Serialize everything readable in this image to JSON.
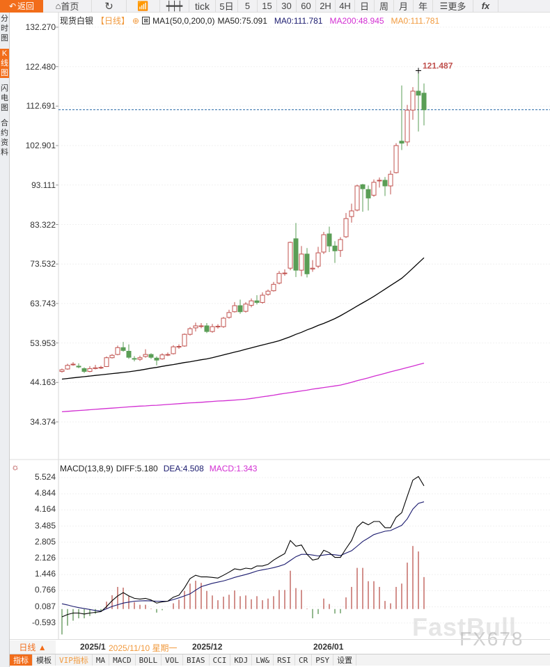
{
  "toolbar": {
    "back": "返回",
    "home": "首页",
    "items": [
      "tick",
      "5日",
      "5",
      "15",
      "30",
      "60",
      "2H",
      "4H",
      "日",
      "周",
      "月",
      "年"
    ],
    "more": "更多",
    "fx": "fx"
  },
  "left_tabs": [
    "分时图",
    "K线图",
    "闪电图",
    "合约资料"
  ],
  "header": {
    "symbol": "现货白银",
    "period": "【日线】",
    "ma_params": "MA1(50,0,200,0)",
    "ma50": "MA50:75.091",
    "ma0_a": "MA0:111.781",
    "ma200": "MA200:48.945",
    "ma0_b": "MA0:111.781"
  },
  "colors": {
    "up": "#c0504d",
    "down": "#5a9e56",
    "ma50": "#000000",
    "ma200": "#d22ed2",
    "accent": "#f26d1a",
    "dea": "#1a1a6e",
    "last_price_line": "#2a6aa8"
  },
  "price_axis": [
    "132.270",
    "122.480",
    "112.691",
    "102.901",
    "93.111",
    "83.322",
    "73.532",
    "63.743",
    "53.953",
    "44.163",
    "34.374"
  ],
  "macd_header": {
    "title": "MACD(13,8,9)",
    "diff": "DIFF:5.180",
    "dea": "DEA:4.508",
    "macd": "MACD:1.343"
  },
  "macd_axis": [
    "5.524",
    "4.844",
    "4.164",
    "3.485",
    "2.805",
    "2.126",
    "1.446",
    "0.766",
    "0.087",
    "-0.593"
  ],
  "date_axis": {
    "period": "日线 ▲",
    "labels": [
      "2025/1",
      "2025/12",
      "2026/01"
    ],
    "cursor": "2025/11/10 星期一"
  },
  "bottom_tabs": [
    "指标",
    "模板",
    "VIP指标",
    "MA",
    "MACD",
    "BOLL",
    "VOL",
    "BIAS",
    "CCI",
    "KDJ",
    "LW&",
    "RSI",
    "CR",
    "PSY",
    "设置"
  ],
  "watermark": [
    "FastBull",
    "FX678"
  ],
  "chart_data": [
    {
      "type": "candlestick",
      "ylim": [
        34.374,
        132.27
      ],
      "high_label": "121.487",
      "last_price": 111.781,
      "ohlc_fields": [
        "open",
        "close",
        "high",
        "low"
      ],
      "candles": [
        [
          46.9,
          47.3,
          47.6,
          46.6
        ],
        [
          47.5,
          48.4,
          48.8,
          47.3
        ],
        [
          48.6,
          48.7,
          49.2,
          48.3
        ],
        [
          48.2,
          48.0,
          48.9,
          47.7
        ],
        [
          47.6,
          46.9,
          47.9,
          46.5
        ],
        [
          46.9,
          47.6,
          48.2,
          46.7
        ],
        [
          47.6,
          47.8,
          48.5,
          47.4
        ],
        [
          47.8,
          47.9,
          48.3,
          47.5
        ],
        [
          48.1,
          50.3,
          50.6,
          48.0
        ],
        [
          50.3,
          50.9,
          51.2,
          50.1
        ],
        [
          51.1,
          52.8,
          53.3,
          50.9
        ],
        [
          52.8,
          52.1,
          54.2,
          51.8
        ],
        [
          51.9,
          50.4,
          53.6,
          50.0
        ],
        [
          50.1,
          50.0,
          50.7,
          49.4
        ],
        [
          49.9,
          50.3,
          50.8,
          49.5
        ],
        [
          50.6,
          51.1,
          52.4,
          50.3
        ],
        [
          51.1,
          50.4,
          51.4,
          50.0
        ],
        [
          50.2,
          49.7,
          50.6,
          48.4
        ],
        [
          50.0,
          51.0,
          51.4,
          49.8
        ],
        [
          51.0,
          51.1,
          51.6,
          50.7
        ],
        [
          51.3,
          53.0,
          53.4,
          51.1
        ],
        [
          53.0,
          53.1,
          53.6,
          52.5
        ],
        [
          53.2,
          56.1,
          56.3,
          53.0
        ],
        [
          56.1,
          57.5,
          57.9,
          55.8
        ],
        [
          57.7,
          58.2,
          59.0,
          56.8
        ],
        [
          58.2,
          58.2,
          58.9,
          57.6
        ],
        [
          58.2,
          56.8,
          58.9,
          56.4
        ],
        [
          56.8,
          58.0,
          58.7,
          56.5
        ],
        [
          58.0,
          58.1,
          58.6,
          57.5
        ],
        [
          58.0,
          60.1,
          60.4,
          57.7
        ],
        [
          60.3,
          61.5,
          62.2,
          60.0
        ],
        [
          61.7,
          63.2,
          64.1,
          61.5
        ],
        [
          63.2,
          61.7,
          64.7,
          61.2
        ],
        [
          61.8,
          63.6,
          64.1,
          61.5
        ],
        [
          63.3,
          64.4,
          65.0,
          62.8
        ],
        [
          64.4,
          64.0,
          65.8,
          63.5
        ],
        [
          64.0,
          65.8,
          66.5,
          63.7
        ],
        [
          66.0,
          66.8,
          67.2,
          65.7
        ],
        [
          66.9,
          68.5,
          69.1,
          66.7
        ],
        [
          68.8,
          71.2,
          71.8,
          68.5
        ],
        [
          71.3,
          71.3,
          72.2,
          70.6
        ],
        [
          72.5,
          78.9,
          79.1,
          72.0
        ],
        [
          79.8,
          72.0,
          83.7,
          70.3
        ],
        [
          72.0,
          76.0,
          78.0,
          70.5
        ],
        [
          76.0,
          71.1,
          77.5,
          70.2
        ],
        [
          72.3,
          72.5,
          74.5,
          71.6
        ],
        [
          73.0,
          76.3,
          77.8,
          72.5
        ],
        [
          76.5,
          80.8,
          81.5,
          76.0
        ],
        [
          81.0,
          78.0,
          82.8,
          76.5
        ],
        [
          78.0,
          76.8,
          79.2,
          73.8
        ],
        [
          76.9,
          79.6,
          80.2,
          75.3
        ],
        [
          80.3,
          84.8,
          86.2,
          80.0
        ],
        [
          85.3,
          86.7,
          88.5,
          83.8
        ],
        [
          86.9,
          92.9,
          93.2,
          86.6
        ],
        [
          93.2,
          92.2,
          93.4,
          86.5
        ],
        [
          92.0,
          89.9,
          93.0,
          86.8
        ],
        [
          90.6,
          93.8,
          94.5,
          90.2
        ],
        [
          94.3,
          94.3,
          95.0,
          92.5
        ],
        [
          94.3,
          92.9,
          95.1,
          90.4
        ],
        [
          92.9,
          95.8,
          96.7,
          90.8
        ],
        [
          96.2,
          102.9,
          103.5,
          96.0
        ],
        [
          104.0,
          103.5,
          117.8,
          101.8
        ],
        [
          103.8,
          111.7,
          113.0,
          102.8
        ],
        [
          111.7,
          116.4,
          117.4,
          109.3
        ],
        [
          116.4,
          115.4,
          121.487,
          106.4
        ],
        [
          115.9,
          111.781,
          118.3,
          107.9
        ]
      ],
      "ma50": [
        45.0,
        45.15,
        45.3,
        45.45,
        45.6,
        45.75,
        45.9,
        46.05,
        46.2,
        46.35,
        46.5,
        46.65,
        46.8,
        47.0,
        47.2,
        47.45,
        47.7,
        47.9,
        48.15,
        48.4,
        48.6,
        48.85,
        49.1,
        49.3,
        49.55,
        49.8,
        50.0,
        50.3,
        50.65,
        51.0,
        51.35,
        51.7,
        52.0,
        52.4,
        52.75,
        53.1,
        53.45,
        53.8,
        54.15,
        54.5,
        55.0,
        55.5,
        56.1,
        56.6,
        57.2,
        57.7,
        58.3,
        58.8,
        59.4,
        60.0,
        60.7,
        61.5,
        62.3,
        63.1,
        63.9,
        64.7,
        65.5,
        66.4,
        67.3,
        68.2,
        69.1,
        70.0,
        71.2,
        72.5,
        73.8,
        75.091
      ],
      "ma200": [
        36.9,
        37.0,
        37.1,
        37.2,
        37.3,
        37.4,
        37.5,
        37.6,
        37.7,
        37.8,
        37.9,
        38.0,
        38.1,
        38.2,
        38.3,
        38.35,
        38.45,
        38.5,
        38.6,
        38.7,
        38.8,
        38.9,
        39.0,
        39.1,
        39.15,
        39.25,
        39.35,
        39.45,
        39.55,
        39.6,
        39.7,
        39.8,
        39.9,
        40.0,
        40.2,
        40.4,
        40.6,
        40.8,
        41.0,
        41.25,
        41.45,
        41.65,
        41.85,
        42.05,
        42.25,
        42.5,
        42.7,
        42.9,
        43.1,
        43.3,
        43.5,
        43.85,
        44.2,
        44.6,
        44.95,
        45.3,
        45.7,
        46.05,
        46.4,
        46.8,
        47.15,
        47.5,
        47.85,
        48.2,
        48.6,
        48.945
      ]
    },
    {
      "type": "macd",
      "ylim": [
        -0.593,
        5.524
      ],
      "diff": [
        -0.33,
        -0.23,
        -0.17,
        -0.17,
        -0.21,
        -0.17,
        -0.14,
        -0.11,
        0.1,
        0.35,
        0.55,
        0.69,
        0.55,
        0.45,
        0.42,
        0.45,
        0.38,
        0.25,
        0.3,
        0.33,
        0.5,
        0.58,
        0.89,
        1.28,
        1.42,
        1.35,
        1.35,
        1.33,
        1.3,
        1.42,
        1.55,
        1.69,
        1.65,
        1.72,
        1.69,
        1.81,
        1.81,
        1.88,
        2.06,
        2.2,
        2.33,
        2.88,
        2.64,
        2.69,
        2.3,
        2.06,
        2.11,
        2.47,
        2.37,
        2.17,
        2.17,
        2.54,
        2.88,
        3.44,
        3.66,
        3.54,
        3.68,
        3.68,
        3.42,
        3.42,
        3.86,
        4.05,
        4.74,
        5.42,
        5.57,
        5.18
      ],
      "dea": [
        0.22,
        0.17,
        0.11,
        0.06,
        0.02,
        -0.02,
        -0.06,
        -0.09,
        0.01,
        0.11,
        0.18,
        0.25,
        0.29,
        0.33,
        0.34,
        0.35,
        0.34,
        0.33,
        0.33,
        0.33,
        0.4,
        0.47,
        0.55,
        0.64,
        0.79,
        0.94,
        1.01,
        1.08,
        1.13,
        1.18,
        1.25,
        1.33,
        1.39,
        1.45,
        1.52,
        1.6,
        1.65,
        1.69,
        1.74,
        1.8,
        1.88,
        2.04,
        2.2,
        2.3,
        2.3,
        2.27,
        2.23,
        2.27,
        2.3,
        2.28,
        2.25,
        2.35,
        2.45,
        2.64,
        2.84,
        2.98,
        3.13,
        3.2,
        3.27,
        3.3,
        3.41,
        3.52,
        3.79,
        4.2,
        4.44,
        4.508
      ],
      "macd": [
        -1.07,
        -0.7,
        -0.49,
        -0.39,
        -0.39,
        -0.29,
        -0.2,
        -0.12,
        0.31,
        0.58,
        0.93,
        0.9,
        0.54,
        0.29,
        0.18,
        0.18,
        0.02,
        -0.15,
        -0.05,
        0.0,
        0.24,
        0.39,
        0.76,
        1.07,
        1.19,
        1.1,
        0.76,
        0.57,
        0.37,
        0.52,
        0.6,
        0.78,
        0.54,
        0.57,
        0.41,
        0.54,
        0.37,
        0.44,
        0.54,
        0.8,
        0.8,
        1.61,
        0.88,
        0.8,
        0.02,
        -0.39,
        -0.21,
        0.44,
        0.21,
        -0.19,
        -0.18,
        0.49,
        0.93,
        1.73,
        1.73,
        1.17,
        1.17,
        0.93,
        0.34,
        0.24,
        0.93,
        1.07,
        1.95,
        2.65,
        2.42,
        1.343
      ]
    }
  ]
}
